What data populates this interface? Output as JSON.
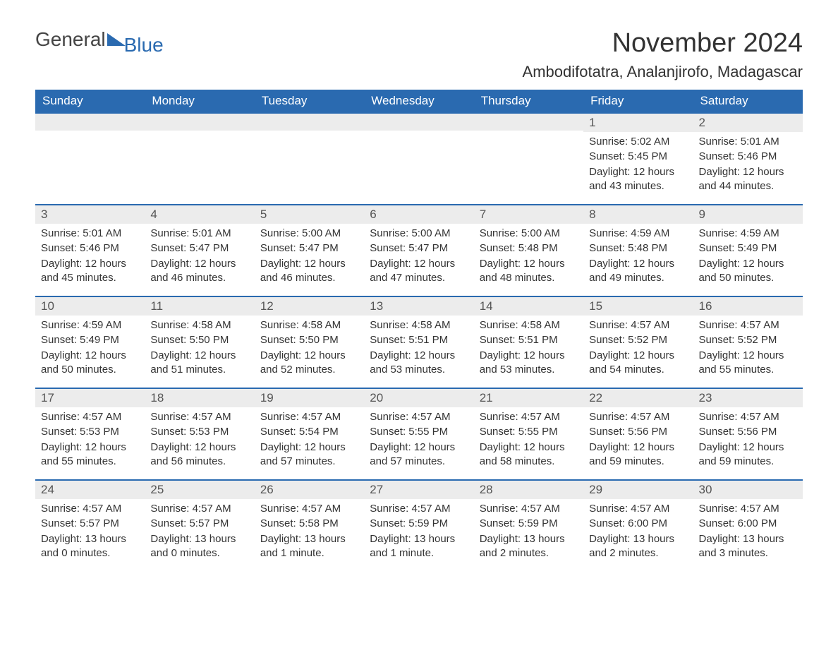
{
  "brand": {
    "part1": "General",
    "part2": "Blue"
  },
  "title": "November 2024",
  "location": "Ambodifotatra, Analanjirofo, Madagascar",
  "colors": {
    "header_bg": "#2a6ab0",
    "header_text": "#ffffff",
    "daynum_bg": "#ececec",
    "daynum_border": "#2a6ab0",
    "text": "#333333",
    "brand_gray": "#444444",
    "brand_blue": "#2a6ab0",
    "page_bg": "#ffffff"
  },
  "fonts": {
    "title_size": 38,
    "location_size": 22,
    "header_size": 17,
    "daynum_size": 17,
    "body_size": 15,
    "logo_size": 28
  },
  "weekdays": [
    "Sunday",
    "Monday",
    "Tuesday",
    "Wednesday",
    "Thursday",
    "Friday",
    "Saturday"
  ],
  "weeks": [
    [
      {
        "num": "",
        "sunrise": "",
        "sunset": "",
        "daylight": ""
      },
      {
        "num": "",
        "sunrise": "",
        "sunset": "",
        "daylight": ""
      },
      {
        "num": "",
        "sunrise": "",
        "sunset": "",
        "daylight": ""
      },
      {
        "num": "",
        "sunrise": "",
        "sunset": "",
        "daylight": ""
      },
      {
        "num": "",
        "sunrise": "",
        "sunset": "",
        "daylight": ""
      },
      {
        "num": "1",
        "sunrise": "Sunrise: 5:02 AM",
        "sunset": "Sunset: 5:45 PM",
        "daylight": "Daylight: 12 hours and 43 minutes."
      },
      {
        "num": "2",
        "sunrise": "Sunrise: 5:01 AM",
        "sunset": "Sunset: 5:46 PM",
        "daylight": "Daylight: 12 hours and 44 minutes."
      }
    ],
    [
      {
        "num": "3",
        "sunrise": "Sunrise: 5:01 AM",
        "sunset": "Sunset: 5:46 PM",
        "daylight": "Daylight: 12 hours and 45 minutes."
      },
      {
        "num": "4",
        "sunrise": "Sunrise: 5:01 AM",
        "sunset": "Sunset: 5:47 PM",
        "daylight": "Daylight: 12 hours and 46 minutes."
      },
      {
        "num": "5",
        "sunrise": "Sunrise: 5:00 AM",
        "sunset": "Sunset: 5:47 PM",
        "daylight": "Daylight: 12 hours and 46 minutes."
      },
      {
        "num": "6",
        "sunrise": "Sunrise: 5:00 AM",
        "sunset": "Sunset: 5:47 PM",
        "daylight": "Daylight: 12 hours and 47 minutes."
      },
      {
        "num": "7",
        "sunrise": "Sunrise: 5:00 AM",
        "sunset": "Sunset: 5:48 PM",
        "daylight": "Daylight: 12 hours and 48 minutes."
      },
      {
        "num": "8",
        "sunrise": "Sunrise: 4:59 AM",
        "sunset": "Sunset: 5:48 PM",
        "daylight": "Daylight: 12 hours and 49 minutes."
      },
      {
        "num": "9",
        "sunrise": "Sunrise: 4:59 AM",
        "sunset": "Sunset: 5:49 PM",
        "daylight": "Daylight: 12 hours and 50 minutes."
      }
    ],
    [
      {
        "num": "10",
        "sunrise": "Sunrise: 4:59 AM",
        "sunset": "Sunset: 5:49 PM",
        "daylight": "Daylight: 12 hours and 50 minutes."
      },
      {
        "num": "11",
        "sunrise": "Sunrise: 4:58 AM",
        "sunset": "Sunset: 5:50 PM",
        "daylight": "Daylight: 12 hours and 51 minutes."
      },
      {
        "num": "12",
        "sunrise": "Sunrise: 4:58 AM",
        "sunset": "Sunset: 5:50 PM",
        "daylight": "Daylight: 12 hours and 52 minutes."
      },
      {
        "num": "13",
        "sunrise": "Sunrise: 4:58 AM",
        "sunset": "Sunset: 5:51 PM",
        "daylight": "Daylight: 12 hours and 53 minutes."
      },
      {
        "num": "14",
        "sunrise": "Sunrise: 4:58 AM",
        "sunset": "Sunset: 5:51 PM",
        "daylight": "Daylight: 12 hours and 53 minutes."
      },
      {
        "num": "15",
        "sunrise": "Sunrise: 4:57 AM",
        "sunset": "Sunset: 5:52 PM",
        "daylight": "Daylight: 12 hours and 54 minutes."
      },
      {
        "num": "16",
        "sunrise": "Sunrise: 4:57 AM",
        "sunset": "Sunset: 5:52 PM",
        "daylight": "Daylight: 12 hours and 55 minutes."
      }
    ],
    [
      {
        "num": "17",
        "sunrise": "Sunrise: 4:57 AM",
        "sunset": "Sunset: 5:53 PM",
        "daylight": "Daylight: 12 hours and 55 minutes."
      },
      {
        "num": "18",
        "sunrise": "Sunrise: 4:57 AM",
        "sunset": "Sunset: 5:53 PM",
        "daylight": "Daylight: 12 hours and 56 minutes."
      },
      {
        "num": "19",
        "sunrise": "Sunrise: 4:57 AM",
        "sunset": "Sunset: 5:54 PM",
        "daylight": "Daylight: 12 hours and 57 minutes."
      },
      {
        "num": "20",
        "sunrise": "Sunrise: 4:57 AM",
        "sunset": "Sunset: 5:55 PM",
        "daylight": "Daylight: 12 hours and 57 minutes."
      },
      {
        "num": "21",
        "sunrise": "Sunrise: 4:57 AM",
        "sunset": "Sunset: 5:55 PM",
        "daylight": "Daylight: 12 hours and 58 minutes."
      },
      {
        "num": "22",
        "sunrise": "Sunrise: 4:57 AM",
        "sunset": "Sunset: 5:56 PM",
        "daylight": "Daylight: 12 hours and 59 minutes."
      },
      {
        "num": "23",
        "sunrise": "Sunrise: 4:57 AM",
        "sunset": "Sunset: 5:56 PM",
        "daylight": "Daylight: 12 hours and 59 minutes."
      }
    ],
    [
      {
        "num": "24",
        "sunrise": "Sunrise: 4:57 AM",
        "sunset": "Sunset: 5:57 PM",
        "daylight": "Daylight: 13 hours and 0 minutes."
      },
      {
        "num": "25",
        "sunrise": "Sunrise: 4:57 AM",
        "sunset": "Sunset: 5:57 PM",
        "daylight": "Daylight: 13 hours and 0 minutes."
      },
      {
        "num": "26",
        "sunrise": "Sunrise: 4:57 AM",
        "sunset": "Sunset: 5:58 PM",
        "daylight": "Daylight: 13 hours and 1 minute."
      },
      {
        "num": "27",
        "sunrise": "Sunrise: 4:57 AM",
        "sunset": "Sunset: 5:59 PM",
        "daylight": "Daylight: 13 hours and 1 minute."
      },
      {
        "num": "28",
        "sunrise": "Sunrise: 4:57 AM",
        "sunset": "Sunset: 5:59 PM",
        "daylight": "Daylight: 13 hours and 2 minutes."
      },
      {
        "num": "29",
        "sunrise": "Sunrise: 4:57 AM",
        "sunset": "Sunset: 6:00 PM",
        "daylight": "Daylight: 13 hours and 2 minutes."
      },
      {
        "num": "30",
        "sunrise": "Sunrise: 4:57 AM",
        "sunset": "Sunset: 6:00 PM",
        "daylight": "Daylight: 13 hours and 3 minutes."
      }
    ]
  ]
}
